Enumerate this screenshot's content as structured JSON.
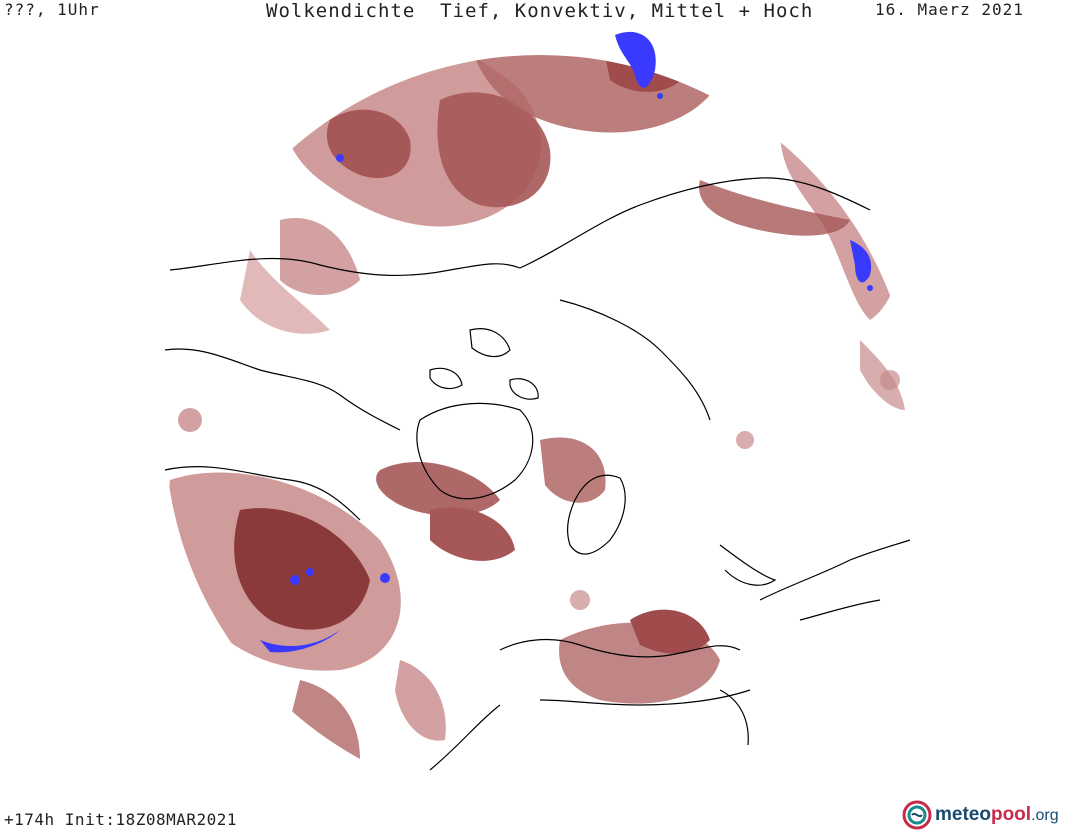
{
  "header": {
    "left": "???, 1Uhr",
    "title": "Wolkendichte  Tief, Konvektiv, Mittel + Hoch",
    "date": "16. Maerz 2021"
  },
  "footer": {
    "forecast": "+174h Init:18Z08MAR2021"
  },
  "logo": {
    "name": "meteopool",
    "part1": "meteo",
    "part2": "pool",
    "tld": ".org"
  },
  "legend_colors": {
    "cloud_light": "#d9a8a8",
    "cloud_mid": "#b46a6a",
    "cloud_dense": "#8a3a3a",
    "convective": "#3a3aff",
    "coastline": "#000000"
  }
}
